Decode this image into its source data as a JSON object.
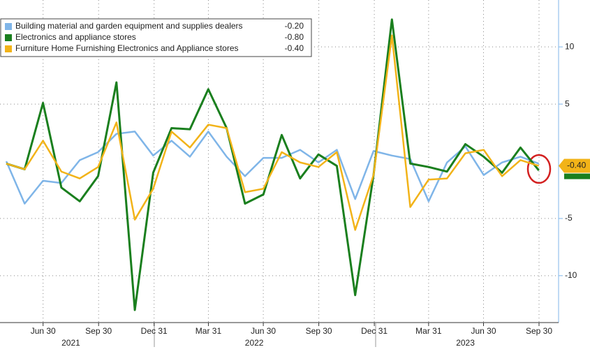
{
  "chart_data": {
    "type": "line",
    "x": [
      "2021-04-30",
      "2021-05-31",
      "2021-06-30",
      "2021-07-31",
      "2021-08-31",
      "2021-09-30",
      "2021-10-31",
      "2021-11-30",
      "2021-12-31",
      "2022-01-31",
      "2022-02-28",
      "2022-03-31",
      "2022-04-30",
      "2022-05-31",
      "2022-06-30",
      "2022-07-31",
      "2022-08-31",
      "2022-09-30",
      "2022-10-31",
      "2022-11-30",
      "2022-12-31",
      "2023-01-31",
      "2023-02-28",
      "2023-03-31",
      "2023-04-30",
      "2023-05-31",
      "2023-06-30",
      "2023-07-31",
      "2023-08-31",
      "2023-09-30"
    ],
    "series": [
      {
        "name": "Building material and garden equipment and supplies dealers",
        "color": "#7fb5e8",
        "last_label": "-0.20",
        "values": [
          0,
          -3.7,
          -1.7,
          -1.9,
          0.1,
          0.8,
          2.4,
          2.6,
          0.5,
          1.8,
          0.4,
          2.6,
          0.4,
          -1.3,
          0.3,
          0.3,
          1.0,
          -0.1,
          1.0,
          -3.3,
          0.9,
          0.5,
          0.2,
          -3.5,
          -0.1,
          1.3,
          -1.2,
          -0.1,
          0.4,
          -0.2
        ]
      },
      {
        "name": "Electronics and appliance stores",
        "color": "#1a7f1e",
        "last_label": "-0.80",
        "values": [
          -0.2,
          -0.7,
          5.1,
          -2.3,
          -3.5,
          -1.3,
          6.9,
          -13.0,
          -1.0,
          2.9,
          2.8,
          6.3,
          2.9,
          -3.7,
          -2.9,
          2.3,
          -1.5,
          0.6,
          -0.4,
          -11.7,
          -1.2,
          12.4,
          -0.2,
          -0.5,
          -0.9,
          1.5,
          0.4,
          -1.0,
          1.2,
          -0.8
        ]
      },
      {
        "name": "Furniture Home Furnishing Electronics and Appliance stores",
        "color": "#f2b318",
        "last_label": "-0.40",
        "values": [
          -0.2,
          -0.7,
          1.8,
          -0.9,
          -1.5,
          -0.5,
          3.4,
          -5.1,
          -2.4,
          2.6,
          1.2,
          3.2,
          2.9,
          -2.7,
          -2.4,
          0.8,
          -0.1,
          -0.5,
          0.8,
          -6.0,
          -1.2,
          11.0,
          -4.0,
          -1.6,
          -1.5,
          0.7,
          1.0,
          -1.3,
          0.1,
          -0.4
        ]
      }
    ],
    "ylim": [
      -14.1,
      14.1
    ],
    "yticks": [
      10,
      5,
      -5,
      -10
    ],
    "xticks": [
      {
        "value": "2021-06-30",
        "label": "Jun 30"
      },
      {
        "value": "2021-09-30",
        "label": "Sep 30"
      },
      {
        "value": "2021-12-31",
        "label": "Dec 31"
      },
      {
        "value": "2022-03-31",
        "label": "Mar 31"
      },
      {
        "value": "2022-06-30",
        "label": "Jun 30"
      },
      {
        "value": "2022-09-30",
        "label": "Sep 30"
      },
      {
        "value": "2022-12-31",
        "label": "Dec 31"
      },
      {
        "value": "2023-03-31",
        "label": "Mar 31"
      },
      {
        "value": "2023-06-30",
        "label": "Jun 30"
      },
      {
        "value": "2023-09-30",
        "label": "Sep 30"
      }
    ],
    "year_labels": [
      {
        "value": "2021-08-15",
        "label": "2021"
      },
      {
        "value": "2022-06-15",
        "label": "2022"
      },
      {
        "value": "2023-05-31",
        "label": "2023"
      }
    ],
    "grid": true,
    "legend": "upper left"
  }
}
